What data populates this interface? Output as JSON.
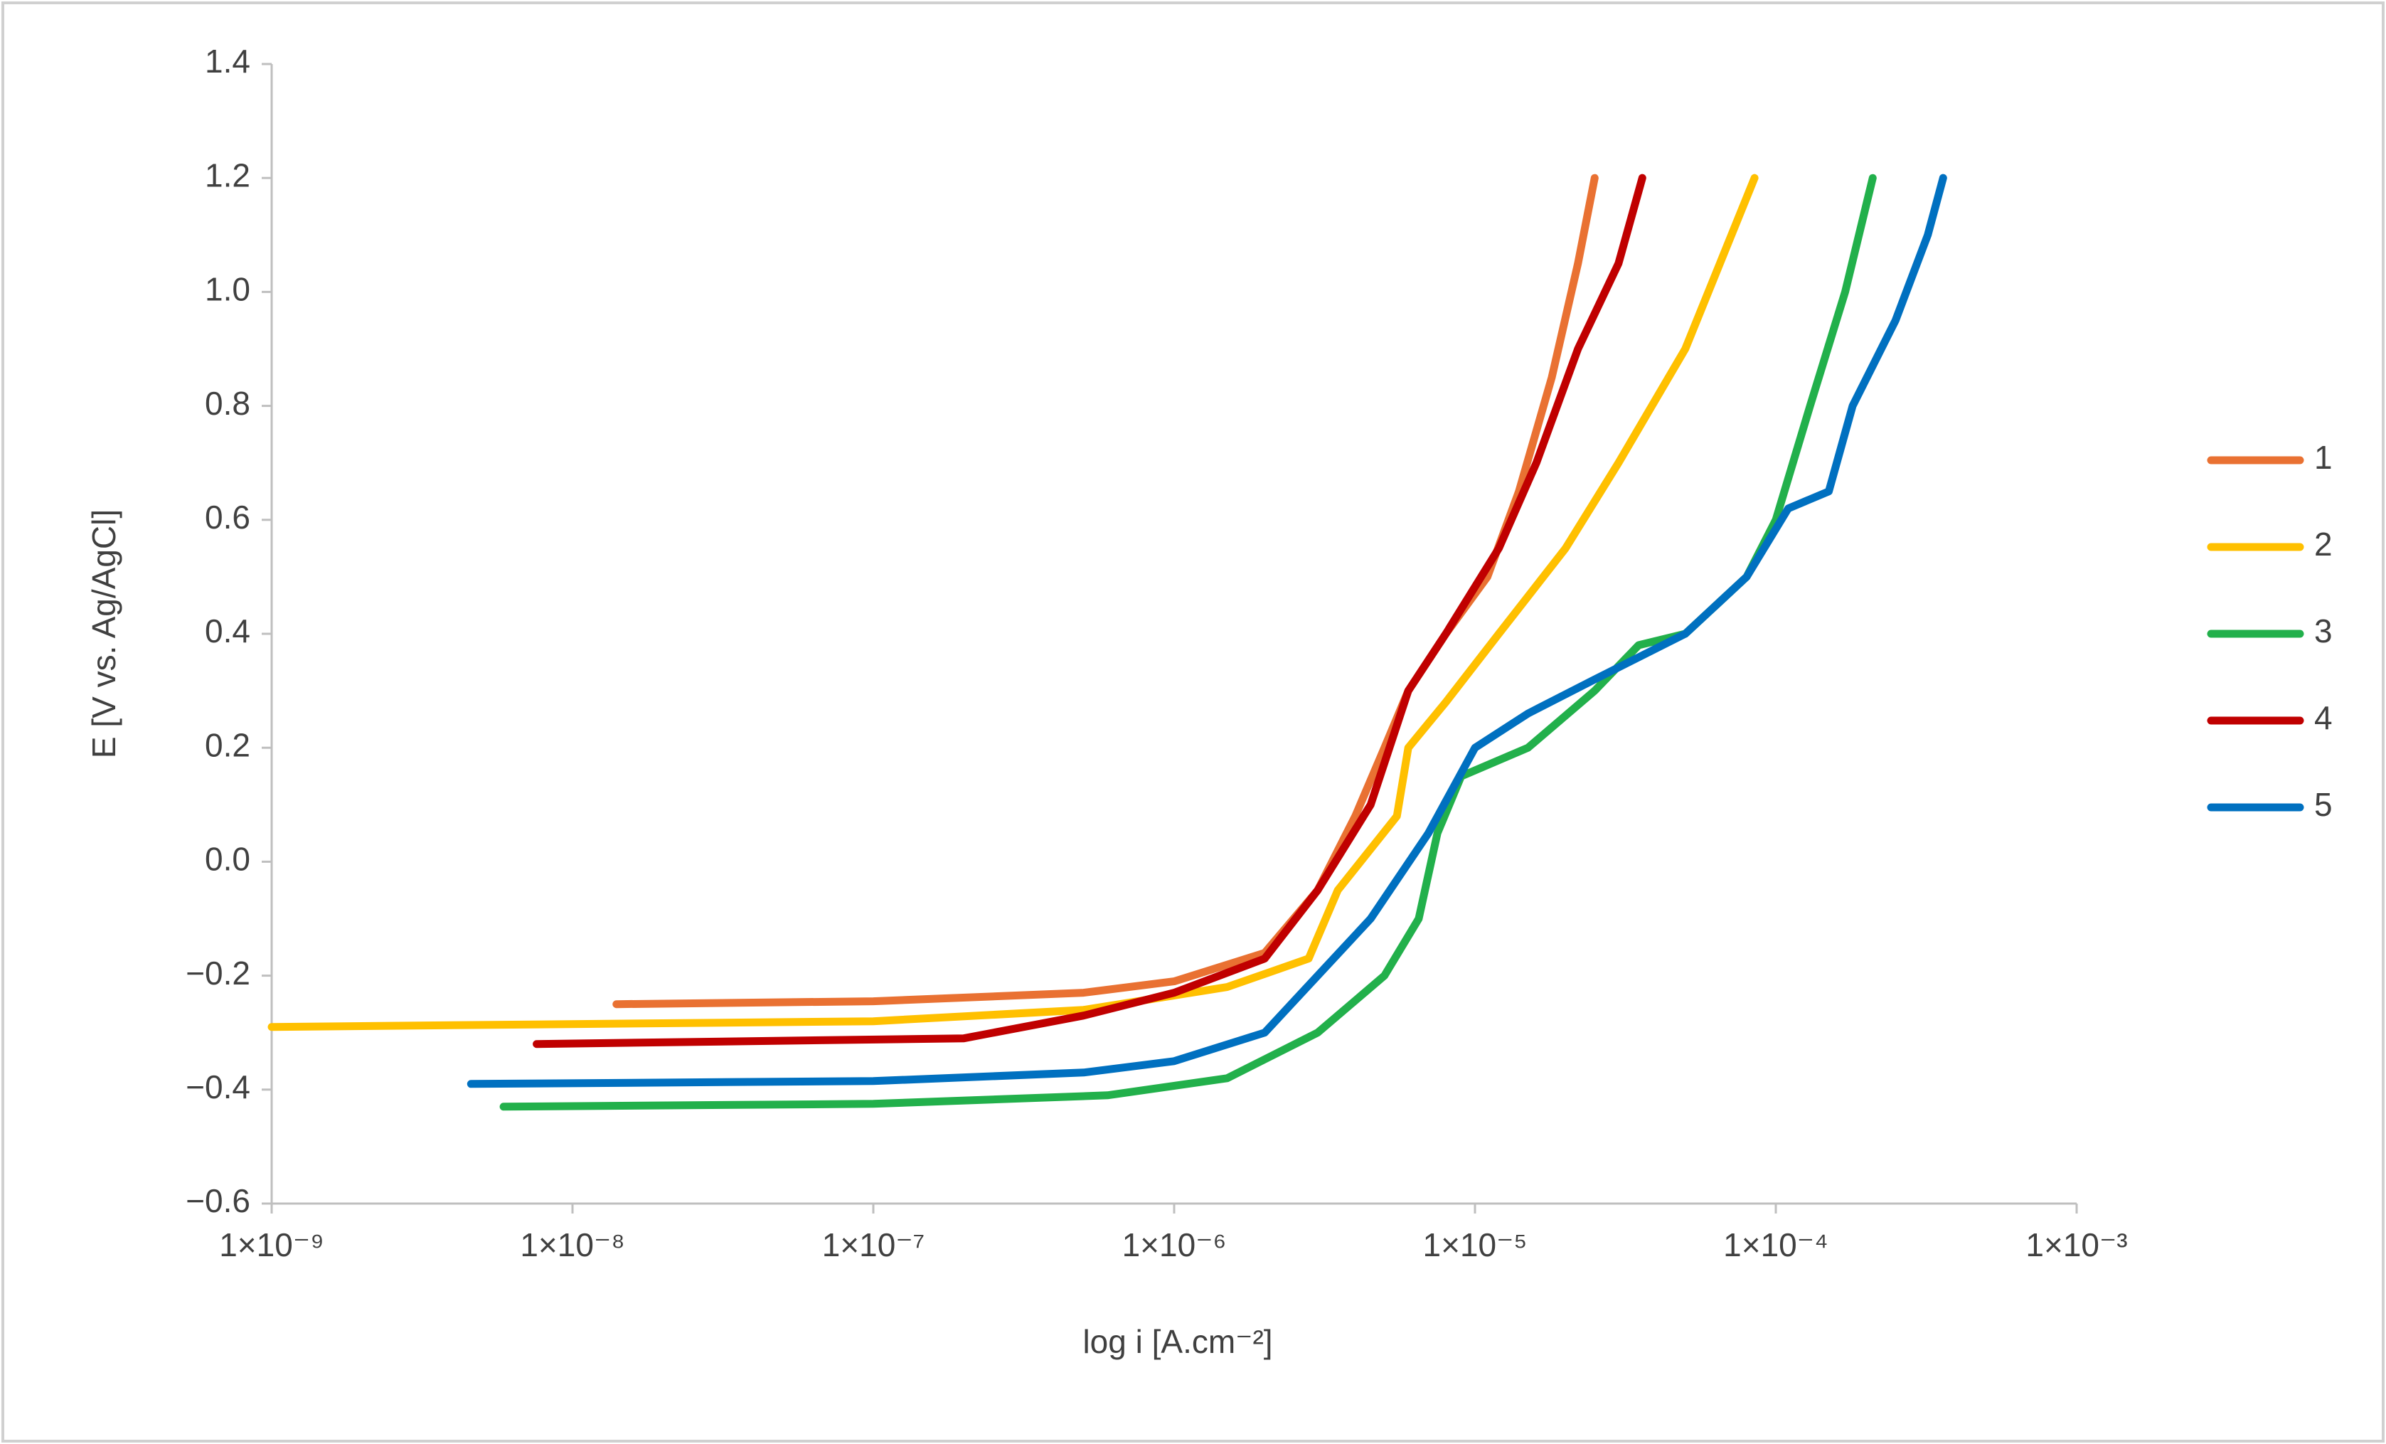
{
  "chart_data": {
    "type": "line",
    "xlabel": "log i [A.cm⁻²]",
    "ylabel": "E [V vs. Ag/AgCl]",
    "xscale": "log",
    "xlim": [
      1e-09,
      0.001
    ],
    "ylim": [
      -0.6,
      1.4
    ],
    "xticks": [
      {
        "value": 1e-09,
        "label": "1×10⁻⁹"
      },
      {
        "value": 1e-08,
        "label": "1×10⁻⁸"
      },
      {
        "value": 1e-07,
        "label": "1×10⁻⁷"
      },
      {
        "value": 1e-06,
        "label": "1×10⁻⁶"
      },
      {
        "value": 1e-05,
        "label": "1×10⁻⁵"
      },
      {
        "value": 0.0001,
        "label": "1×10⁻⁴"
      },
      {
        "value": 0.001,
        "label": "1×10⁻³"
      }
    ],
    "yticks": [
      {
        "value": -0.6,
        "label": "−0.6"
      },
      {
        "value": -0.4,
        "label": "−0.4"
      },
      {
        "value": -0.2,
        "label": "−0.2"
      },
      {
        "value": 0,
        "label": "0.0"
      },
      0.2,
      0.4,
      0.6,
      0.8,
      {
        "value": 1,
        "label": "1.0"
      },
      1.2,
      1.4
    ],
    "grid": false,
    "legend": "right",
    "series": [
      {
        "name": "1",
        "color": "#E97132",
        "x": [
          1.4e-08,
          1e-07,
          5e-07,
          1e-06,
          2e-06,
          3e-06,
          4e-06,
          5e-06,
          6e-06,
          8e-06,
          1.1e-05,
          1.4e-05,
          1.8e-05,
          2.2e-05,
          2.5e-05
        ],
        "values": [
          -0.25,
          -0.245,
          -0.23,
          -0.21,
          -0.16,
          -0.05,
          0.08,
          0.2,
          0.3,
          0.4,
          0.5,
          0.65,
          0.85,
          1.05,
          1.2
        ]
      },
      {
        "name": "2",
        "color": "#FFC000",
        "x": [
          1e-09,
          1e-07,
          5e-07,
          1.5e-06,
          2.8e-06,
          3.5e-06,
          5.5e-06,
          6e-06,
          8e-06,
          1.2e-05,
          2e-05,
          3e-05,
          5e-05,
          8.5e-05
        ],
        "values": [
          -0.29,
          -0.28,
          -0.26,
          -0.22,
          -0.17,
          -0.05,
          0.08,
          0.2,
          0.28,
          0.4,
          0.55,
          0.7,
          0.9,
          1.2
        ]
      },
      {
        "name": "3",
        "color": "#22B04B",
        "x": [
          5.9e-09,
          1e-07,
          6e-07,
          1.5e-06,
          3e-06,
          5e-06,
          6.5e-06,
          7.5e-06,
          9e-06,
          1.5e-05,
          2.5e-05,
          3.5e-05,
          5e-05,
          8e-05,
          0.0001,
          0.00013,
          0.00017,
          0.00021
        ],
        "values": [
          -0.43,
          -0.425,
          -0.41,
          -0.38,
          -0.3,
          -0.2,
          -0.1,
          0.05,
          0.15,
          0.2,
          0.3,
          0.38,
          0.4,
          0.5,
          0.6,
          0.8,
          1.0,
          1.2
        ]
      },
      {
        "name": "4",
        "color": "#C00000",
        "x": [
          7.6e-09,
          2e-07,
          5e-07,
          1e-06,
          2e-06,
          3e-06,
          4.5e-06,
          6e-06,
          8e-06,
          1.2e-05,
          1.6e-05,
          2.2e-05,
          3e-05,
          3.6e-05
        ],
        "values": [
          -0.32,
          -0.31,
          -0.27,
          -0.23,
          -0.17,
          -0.05,
          0.1,
          0.3,
          0.4,
          0.55,
          0.7,
          0.9,
          1.05,
          1.2
        ]
      },
      {
        "name": "5",
        "color": "#0070C0",
        "x": [
          4.6e-09,
          1e-07,
          5e-07,
          1e-06,
          2e-06,
          3e-06,
          4.5e-06,
          7e-06,
          1e-05,
          1.5e-05,
          2.5e-05,
          5e-05,
          8e-05,
          0.00011,
          0.00015,
          0.00018,
          0.00025,
          0.00032,
          0.00036
        ],
        "values": [
          -0.39,
          -0.385,
          -0.37,
          -0.35,
          -0.3,
          -0.2,
          -0.1,
          0.05,
          0.2,
          0.26,
          0.32,
          0.4,
          0.5,
          0.62,
          0.65,
          0.8,
          0.95,
          1.1,
          1.2
        ]
      }
    ]
  }
}
